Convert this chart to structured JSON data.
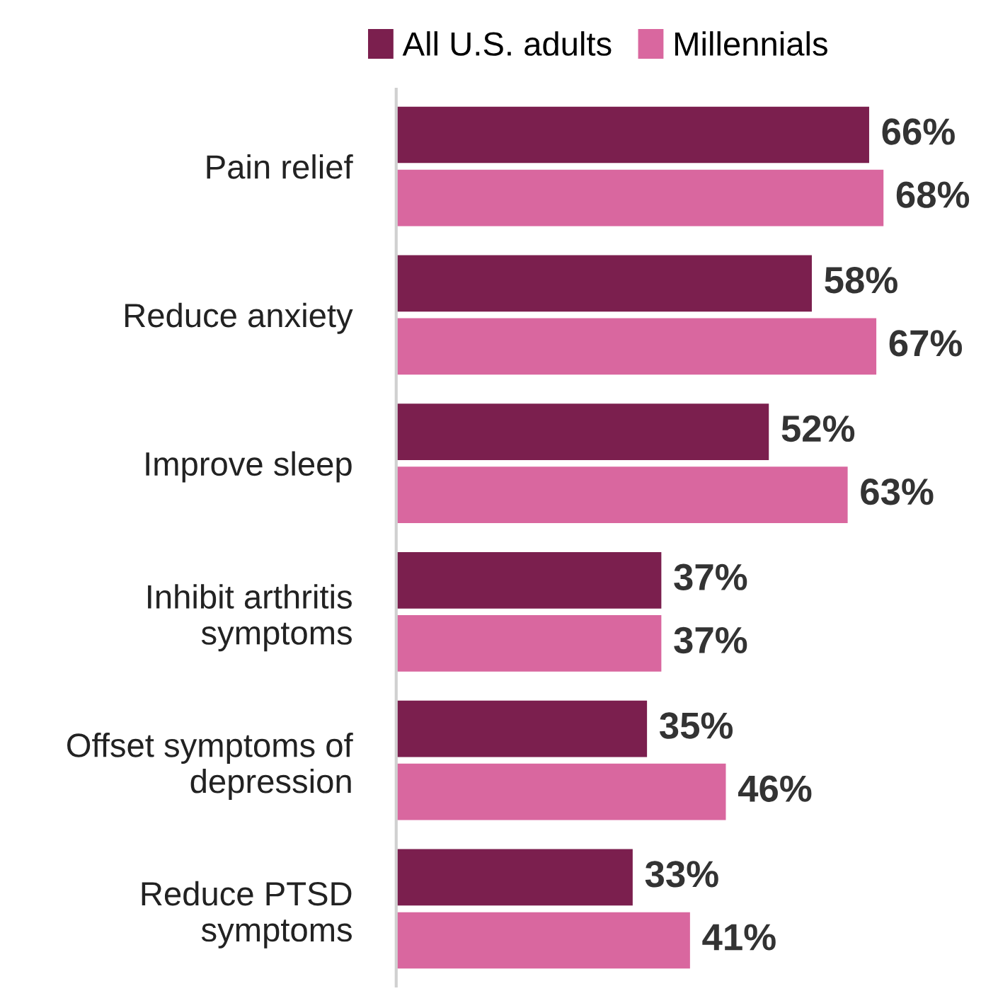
{
  "chart_data": {
    "type": "bar",
    "orientation": "horizontal",
    "categories": [
      "Pain relief",
      "Reduce anxiety",
      "Improve sleep",
      "Inhibit arthritis\nsymptoms",
      "Offset symptoms of\ndepression",
      "Reduce PTSD\nsymptoms"
    ],
    "series": [
      {
        "name": "All U.S. adults",
        "color": "#7b1f4e",
        "values": [
          66,
          58,
          52,
          37,
          35,
          33
        ],
        "value_labels": [
          "66%",
          "58%",
          "52%",
          "37%",
          "35%",
          "33%"
        ]
      },
      {
        "name": "Millennials",
        "color": "#d9679f",
        "values": [
          68,
          67,
          63,
          37,
          46,
          41
        ],
        "value_labels": [
          "68%",
          "67%",
          "63%",
          "37%",
          "46%",
          "41%"
        ]
      }
    ],
    "tick_labels": "y",
    "grid": false,
    "legend": "top"
  }
}
